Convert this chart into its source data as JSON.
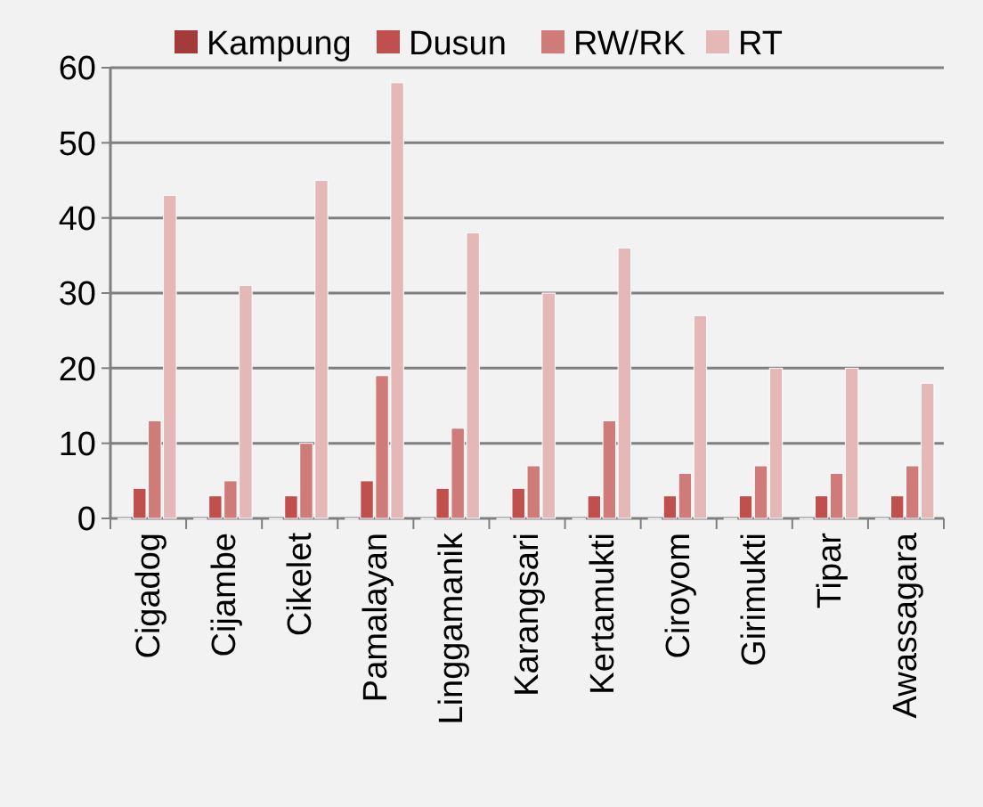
{
  "chart_data": {
    "type": "bar",
    "categories": [
      "Cigadog",
      "Cijambe",
      "Cikelet",
      "Pamalayan",
      "Linggamanik",
      "Karangsari",
      "Kertamukti",
      "Ciroyom",
      "Girimukti",
      "Tipar",
      "Awassagara"
    ],
    "series": [
      {
        "name": "Kampung",
        "color": "#a33b3b",
        "values": [
          0,
          0,
          0,
          0,
          0,
          0,
          0,
          0,
          0,
          0,
          0
        ]
      },
      {
        "name": "Dusun",
        "color": "#c0504d",
        "values": [
          4,
          3,
          3,
          5,
          4,
          4,
          3,
          3,
          3,
          3,
          3
        ]
      },
      {
        "name": "RW/RK",
        "color": "#cf7b79",
        "values": [
          13,
          5,
          10,
          19,
          12,
          7,
          13,
          6,
          7,
          6,
          7
        ]
      },
      {
        "name": "RT",
        "color": "#e4b8b7",
        "values": [
          43,
          31,
          45,
          58,
          38,
          30,
          36,
          27,
          20,
          20,
          18
        ]
      }
    ],
    "ylim": [
      0,
      60
    ],
    "yticks": [
      0,
      10,
      20,
      30,
      40,
      50,
      60
    ],
    "grid": "y",
    "legend": "top"
  }
}
